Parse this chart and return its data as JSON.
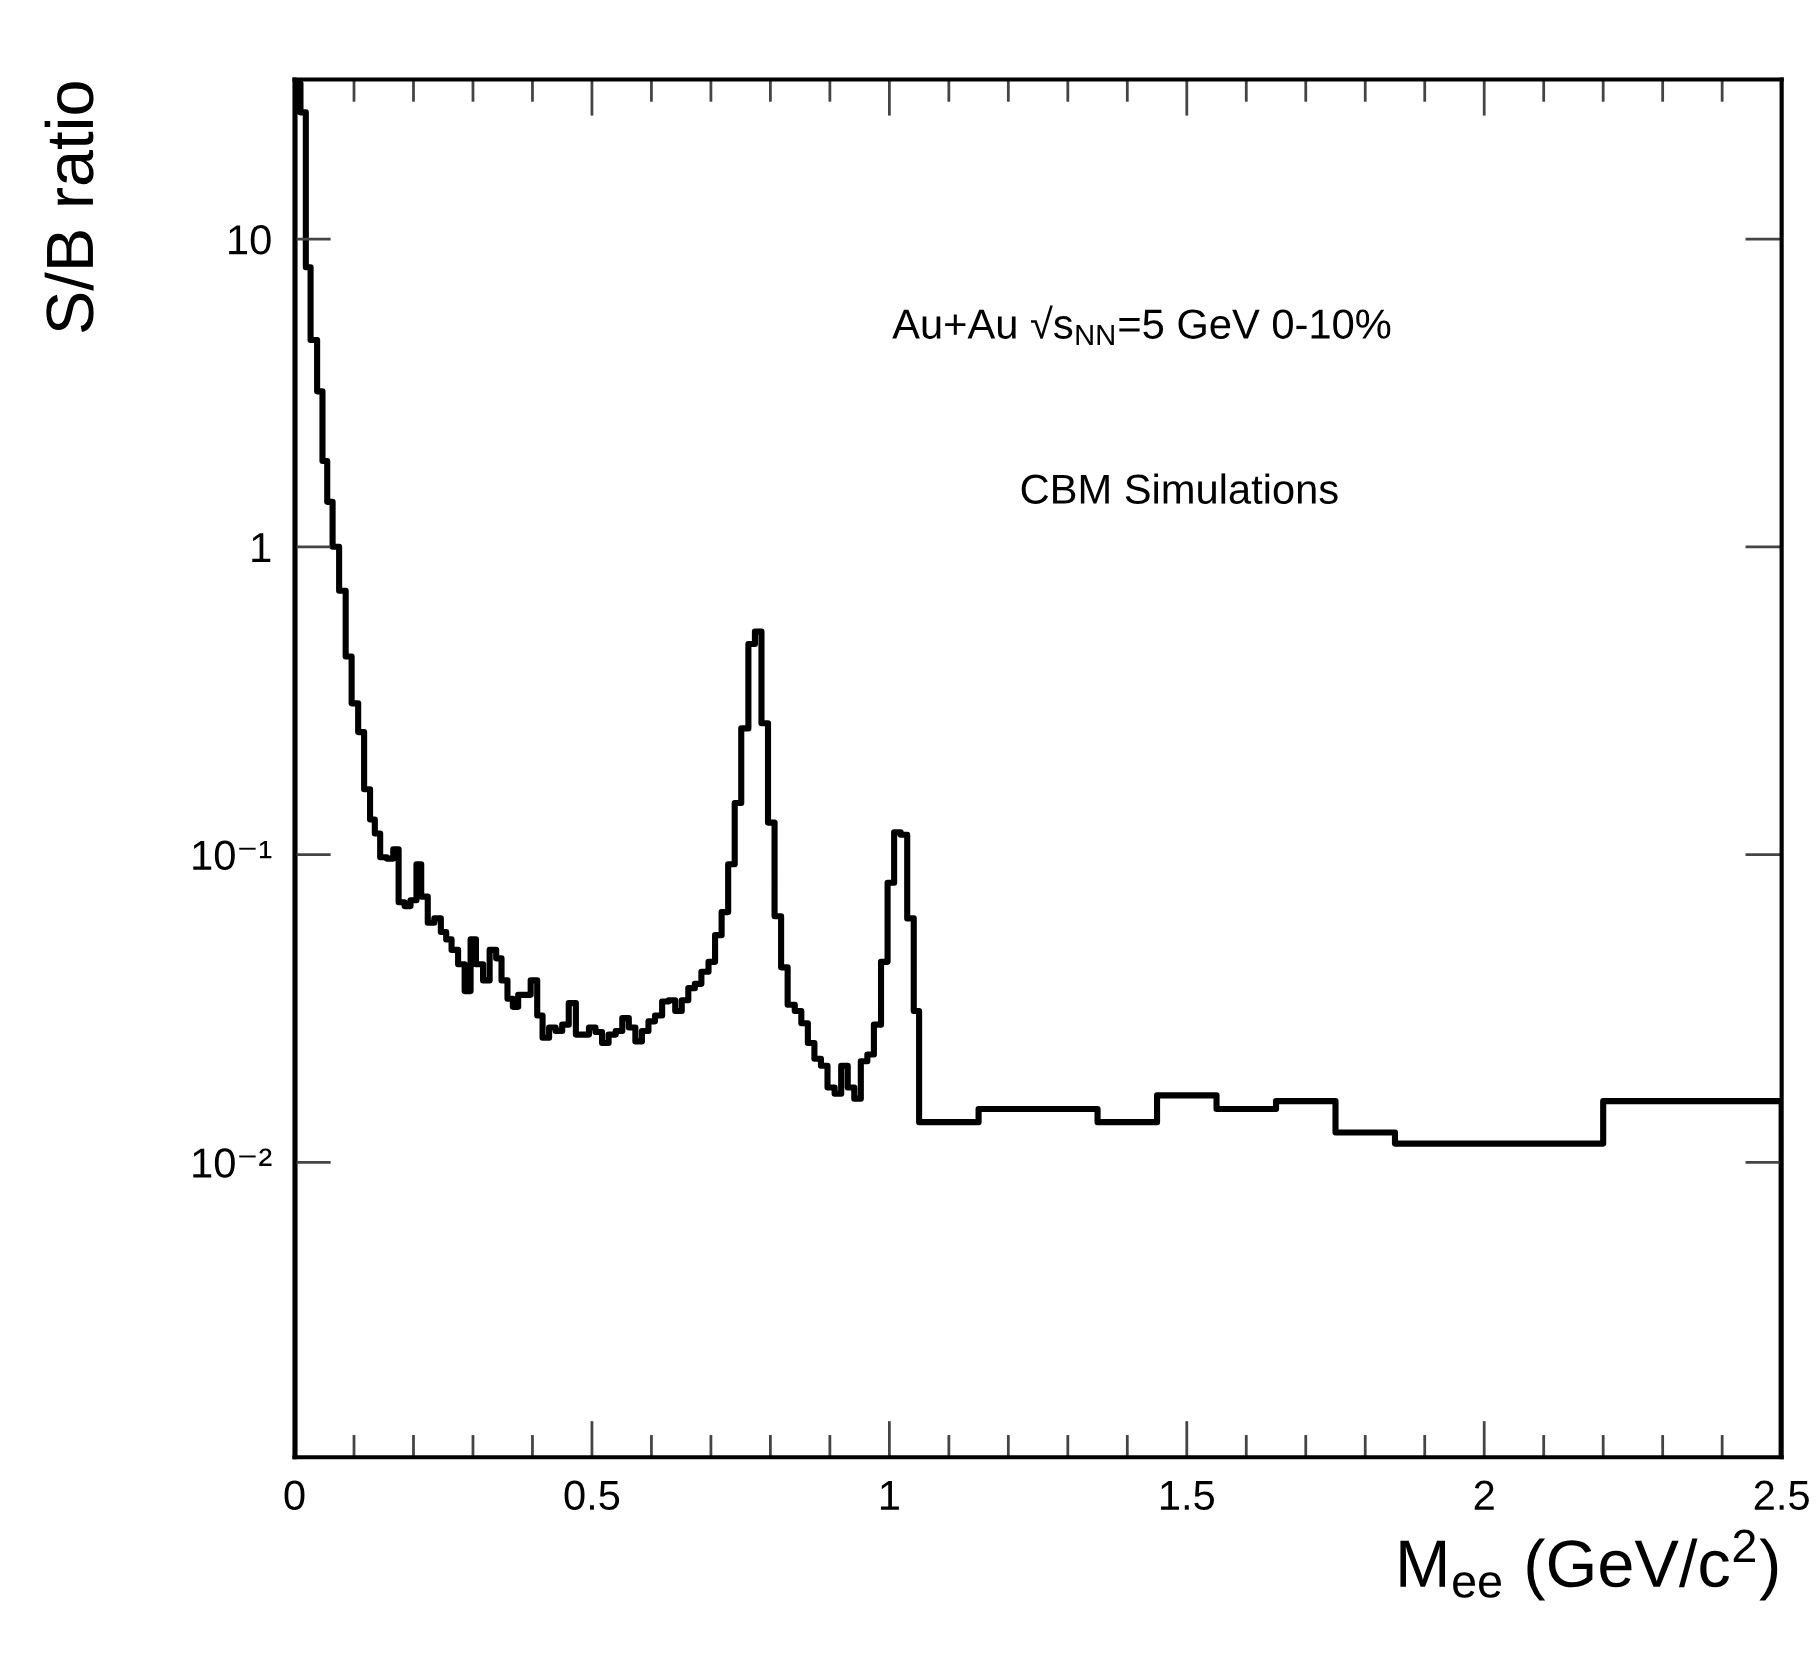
{
  "chart_data": {
    "type": "histogram",
    "xlabel": "M$_{ee}$ (GeV/c$^{2}$)",
    "ylabel": "S/B ratio",
    "annotations": [
      "Au+Au √s$_{NN}$=5 GeV 0-10%",
      "CBM Simulations"
    ],
    "color": "#000000",
    "log": "y",
    "xlim": [
      0,
      2.5
    ],
    "xticks": [
      0,
      0.5,
      1,
      1.5,
      2,
      2.5
    ],
    "ylim": [
      0.0011,
      33
    ],
    "yticks": [
      {
        "value": 0.01,
        "label": "10⁻²"
      },
      {
        "value": 0.1,
        "label": "10⁻¹"
      },
      1,
      10
    ],
    "bins": [
      0,
      0.01,
      0.019,
      0.027,
      0.038,
      0.047,
      0.055,
      0.064,
      0.075,
      0.086,
      0.096,
      0.107,
      0.117,
      0.127,
      0.135,
      0.144,
      0.155,
      0.166,
      0.175,
      0.185,
      0.195,
      0.205,
      0.213,
      0.224,
      0.235,
      0.246,
      0.255,
      0.264,
      0.275,
      0.286,
      0.296,
      0.305,
      0.317,
      0.328,
      0.339,
      0.348,
      0.358,
      0.367,
      0.376,
      0.386,
      0.397,
      0.408,
      0.417,
      0.428,
      0.439,
      0.45,
      0.461,
      0.473,
      0.484,
      0.495,
      0.506,
      0.517,
      0.528,
      0.54,
      0.551,
      0.562,
      0.573,
      0.584,
      0.595,
      0.606,
      0.618,
      0.629,
      0.64,
      0.651,
      0.662,
      0.673,
      0.684,
      0.696,
      0.707,
      0.718,
      0.729,
      0.74,
      0.751,
      0.763,
      0.774,
      0.785,
      0.796,
      0.807,
      0.818,
      0.829,
      0.841,
      0.852,
      0.863,
      0.874,
      0.885,
      0.896,
      0.908,
      0.919,
      0.93,
      0.941,
      0.952,
      0.963,
      0.974,
      0.986,
      0.997,
      1.008,
      1.019,
      1.03,
      1.041,
      1.05,
      1.15,
      1.35,
      1.45,
      1.55,
      1.65,
      1.75,
      1.85,
      2.2,
      2.5
    ],
    "values": [
      32,
      25.8,
      8.1,
      4.7,
      3.2,
      1.9,
      1.4,
      1.0,
      0.72,
      0.44,
      0.31,
      0.25,
      0.163,
      0.13,
      0.117,
      0.098,
      0.097,
      0.104,
      0.07,
      0.068,
      0.071,
      0.093,
      0.073,
      0.06,
      0.062,
      0.056,
      0.053,
      0.049,
      0.044,
      0.036,
      0.053,
      0.044,
      0.039,
      0.049,
      0.046,
      0.039,
      0.034,
      0.032,
      0.035,
      0.035,
      0.039,
      0.03,
      0.0254,
      0.0274,
      0.0267,
      0.028,
      0.0329,
      0.026,
      0.026,
      0.0274,
      0.0265,
      0.0244,
      0.026,
      0.0267,
      0.0294,
      0.0274,
      0.0247,
      0.0267,
      0.0287,
      0.03,
      0.0333,
      0.0336,
      0.031,
      0.0336,
      0.0368,
      0.038,
      0.0416,
      0.0448,
      0.0547,
      0.065,
      0.093,
      0.147,
      0.257,
      0.483,
      0.53,
      0.267,
      0.127,
      0.063,
      0.043,
      0.0325,
      0.031,
      0.0283,
      0.0244,
      0.0217,
      0.0206,
      0.0175,
      0.0167,
      0.0206,
      0.0175,
      0.0161,
      0.0213,
      0.0224,
      0.028,
      0.0448,
      0.081,
      0.118,
      0.116,
      0.062,
      0.031,
      0.0135,
      0.0149,
      0.0135,
      0.0165,
      0.0149,
      0.0158,
      0.0125,
      0.0115,
      0.0158
    ]
  }
}
